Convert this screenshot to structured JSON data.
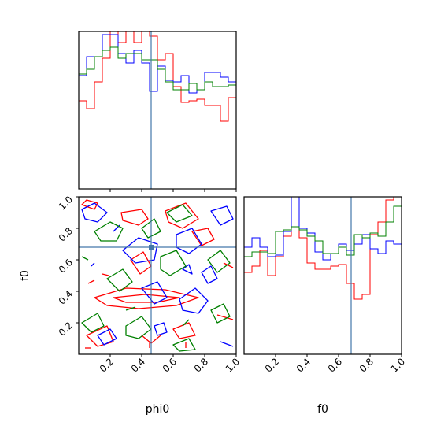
{
  "chart_data": {
    "type": "corner",
    "parameters": [
      "phi0",
      "f0"
    ],
    "truths": {
      "phi0": 0.46,
      "f0": 0.68
    },
    "range": [
      0,
      1
    ],
    "ticks": [
      0.2,
      0.4,
      0.6,
      0.8,
      1.0
    ],
    "tick_labels": [
      "0.2",
      "0.4",
      "0.6",
      "0.8",
      "1.0"
    ],
    "xlabel_left": "phi0",
    "xlabel_right": "f0",
    "ylabel": "f0",
    "colors": {
      "series_a": "#ff0000",
      "series_b": "#0000ff",
      "series_c": "#008000",
      "truth": "#4477aa"
    },
    "hist_phi0": {
      "bins": 20,
      "series": [
        {
          "color": "#ff0000",
          "values": [
            0.56,
            0.51,
            0.68,
            0.83,
            1.02,
            0.93,
            1.05,
            0.93,
            1.0,
            0.97,
            0.82,
            0.86,
            0.65,
            0.55,
            0.56,
            0.57,
            0.53,
            0.53,
            0.43,
            0.58
          ]
        },
        {
          "color": "#0000ff",
          "values": [
            0.72,
            0.84,
            0.84,
            0.98,
            0.98,
            0.86,
            0.8,
            0.88,
            0.8,
            0.62,
            0.78,
            0.69,
            0.68,
            0.72,
            0.61,
            0.63,
            0.74,
            0.74,
            0.71,
            0.68
          ]
        },
        {
          "color": "#008000",
          "values": [
            0.73,
            0.76,
            0.84,
            0.88,
            0.9,
            0.83,
            0.86,
            0.86,
            0.82,
            0.82,
            0.76,
            0.68,
            0.63,
            0.63,
            0.67,
            0.63,
            0.68,
            0.65,
            0.65,
            0.66
          ]
        }
      ]
    },
    "hist_f0": {
      "bins": 20,
      "series": [
        {
          "color": "#ff0000",
          "values": [
            0.52,
            0.56,
            0.66,
            0.5,
            0.62,
            0.75,
            1.0,
            0.74,
            0.58,
            0.54,
            0.54,
            0.56,
            0.57,
            0.45,
            0.35,
            0.38,
            0.76,
            0.84,
            0.98,
            1.01
          ]
        },
        {
          "color": "#0000ff",
          "values": [
            0.68,
            0.74,
            0.68,
            0.62,
            0.63,
            0.78,
            1.0,
            0.8,
            0.77,
            0.65,
            0.6,
            0.64,
            0.7,
            0.66,
            0.7,
            0.76,
            0.67,
            0.64,
            0.72,
            0.7
          ]
        },
        {
          "color": "#008000",
          "values": [
            0.62,
            0.65,
            0.65,
            0.64,
            0.78,
            0.79,
            0.81,
            0.79,
            0.75,
            0.72,
            0.64,
            0.64,
            0.68,
            0.63,
            0.76,
            0.74,
            0.77,
            0.75,
            0.84,
            0.94
          ]
        }
      ]
    },
    "contours_2d": [
      {
        "color": "#ff0000",
        "paths": [
          {
            "closed": true,
            "pts": [
              [
                0.02,
                0.95
              ],
              [
                0.1,
                0.92
              ],
              [
                0.12,
                0.96
              ],
              [
                0.05,
                0.98
              ]
            ]
          },
          {
            "closed": true,
            "pts": [
              [
                0.27,
                0.9
              ],
              [
                0.4,
                0.92
              ],
              [
                0.44,
                0.86
              ],
              [
                0.38,
                0.82
              ],
              [
                0.28,
                0.85
              ]
            ]
          },
          {
            "closed": true,
            "pts": [
              [
                0.1,
                0.36
              ],
              [
                0.3,
                0.42
              ],
              [
                0.55,
                0.41
              ],
              [
                0.76,
                0.36
              ],
              [
                0.62,
                0.31
              ],
              [
                0.38,
                0.29
              ],
              [
                0.18,
                0.31
              ]
            ]
          },
          {
            "closed": true,
            "pts": [
              [
                0.22,
                0.36
              ],
              [
                0.42,
                0.38
              ],
              [
                0.64,
                0.36
              ],
              [
                0.5,
                0.33
              ],
              [
                0.3,
                0.33
              ]
            ]
          },
          {
            "closed": true,
            "pts": [
              [
                0.55,
                0.91
              ],
              [
                0.68,
                0.96
              ],
              [
                0.76,
                0.86
              ],
              [
                0.66,
                0.8
              ],
              [
                0.57,
                0.84
              ]
            ]
          },
          {
            "closed": true,
            "pts": [
              [
                0.72,
                0.78
              ],
              [
                0.82,
                0.8
              ],
              [
                0.86,
                0.73
              ],
              [
                0.78,
                0.69
              ]
            ]
          },
          {
            "closed": true,
            "pts": [
              [
                0.33,
                0.6
              ],
              [
                0.41,
                0.65
              ],
              [
                0.46,
                0.56
              ],
              [
                0.39,
                0.51
              ]
            ]
          },
          {
            "closed": true,
            "pts": [
              [
                0.05,
                0.12
              ],
              [
                0.18,
                0.18
              ],
              [
                0.22,
                0.08
              ],
              [
                0.12,
                0.05
              ]
            ]
          },
          {
            "closed": true,
            "pts": [
              [
                0.6,
                0.16
              ],
              [
                0.7,
                0.2
              ],
              [
                0.74,
                0.12
              ],
              [
                0.64,
                0.1
              ]
            ]
          },
          {
            "closed": false,
            "pts": [
              [
                0.88,
                0.25
              ],
              [
                0.98,
                0.22
              ]
            ]
          },
          {
            "closed": false,
            "pts": [
              [
                0.4,
                0.12
              ],
              [
                0.46,
                0.07
              ],
              [
                0.52,
                0.12
              ]
            ]
          },
          {
            "closed": false,
            "pts": [
              [
                0.06,
                0.45
              ],
              [
                0.1,
                0.47
              ]
            ]
          },
          {
            "closed": false,
            "pts": [
              [
                0.15,
                0.51
              ],
              [
                0.19,
                0.5
              ]
            ]
          },
          {
            "closed": false,
            "pts": [
              [
                0.45,
                0.04
              ],
              [
                0.45,
                0.08
              ]
            ]
          },
          {
            "closed": false,
            "pts": [
              [
                0.68,
                0.04
              ],
              [
                0.68,
                0.08
              ]
            ]
          },
          {
            "closed": false,
            "pts": [
              [
                0.04,
                0.04
              ],
              [
                0.08,
                0.04
              ]
            ]
          },
          {
            "closed": false,
            "pts": [
              [
                0.92,
                0.58
              ],
              [
                0.98,
                0.55
              ]
            ]
          }
        ]
      },
      {
        "color": "#0000ff",
        "paths": [
          {
            "closed": true,
            "pts": [
              [
                0.02,
                0.92
              ],
              [
                0.1,
                0.96
              ],
              [
                0.18,
                0.9
              ],
              [
                0.12,
                0.84
              ],
              [
                0.04,
                0.86
              ]
            ]
          },
          {
            "closed": true,
            "pts": [
              [
                0.28,
                0.66
              ],
              [
                0.38,
                0.74
              ],
              [
                0.5,
                0.7
              ],
              [
                0.48,
                0.6
              ],
              [
                0.36,
                0.58
              ]
            ]
          },
          {
            "closed": true,
            "pts": [
              [
                0.62,
                0.76
              ],
              [
                0.72,
                0.8
              ],
              [
                0.78,
                0.7
              ],
              [
                0.7,
                0.64
              ],
              [
                0.62,
                0.68
              ]
            ]
          },
          {
            "closed": true,
            "pts": [
              [
                0.4,
                0.42
              ],
              [
                0.5,
                0.46
              ],
              [
                0.56,
                0.36
              ],
              [
                0.48,
                0.32
              ]
            ]
          },
          {
            "closed": true,
            "pts": [
              [
                0.64,
                0.35
              ],
              [
                0.74,
                0.42
              ],
              [
                0.82,
                0.34
              ],
              [
                0.76,
                0.26
              ],
              [
                0.66,
                0.28
              ]
            ]
          },
          {
            "closed": true,
            "pts": [
              [
                0.48,
                0.18
              ],
              [
                0.54,
                0.2
              ],
              [
                0.56,
                0.14
              ],
              [
                0.5,
                0.12
              ]
            ]
          },
          {
            "closed": true,
            "pts": [
              [
                0.12,
                0.12
              ],
              [
                0.2,
                0.16
              ],
              [
                0.24,
                0.1
              ],
              [
                0.16,
                0.06
              ]
            ]
          },
          {
            "closed": true,
            "pts": [
              [
                0.84,
                0.91
              ],
              [
                0.94,
                0.94
              ],
              [
                0.98,
                0.86
              ],
              [
                0.9,
                0.82
              ]
            ]
          },
          {
            "closed": true,
            "pts": [
              [
                0.78,
                0.52
              ],
              [
                0.84,
                0.56
              ],
              [
                0.88,
                0.48
              ],
              [
                0.82,
                0.45
              ]
            ]
          },
          {
            "closed": true,
            "pts": [
              [
                0.66,
                0.54
              ],
              [
                0.7,
                0.57
              ],
              [
                0.72,
                0.51
              ]
            ]
          },
          {
            "closed": false,
            "pts": [
              [
                0.08,
                0.56
              ],
              [
                0.1,
                0.58
              ]
            ]
          },
          {
            "closed": false,
            "pts": [
              [
                0.22,
                0.78
              ],
              [
                0.26,
                0.82
              ]
            ]
          },
          {
            "closed": false,
            "pts": [
              [
                0.9,
                0.08
              ],
              [
                0.98,
                0.05
              ]
            ]
          }
        ]
      },
      {
        "color": "#008000",
        "paths": [
          {
            "closed": true,
            "pts": [
              [
                0.1,
                0.78
              ],
              [
                0.2,
                0.84
              ],
              [
                0.28,
                0.8
              ],
              [
                0.24,
                0.72
              ],
              [
                0.14,
                0.72
              ]
            ]
          },
          {
            "closed": true,
            "pts": [
              [
                0.52,
                0.62
              ],
              [
                0.62,
                0.66
              ],
              [
                0.68,
                0.56
              ],
              [
                0.58,
                0.5
              ],
              [
                0.52,
                0.54
              ]
            ]
          },
          {
            "closed": true,
            "pts": [
              [
                0.18,
                0.48
              ],
              [
                0.28,
                0.54
              ],
              [
                0.34,
                0.46
              ],
              [
                0.26,
                0.4
              ]
            ]
          },
          {
            "closed": true,
            "pts": [
              [
                0.3,
                0.18
              ],
              [
                0.4,
                0.24
              ],
              [
                0.46,
                0.16
              ],
              [
                0.38,
                0.1
              ],
              [
                0.3,
                0.12
              ]
            ]
          },
          {
            "closed": true,
            "pts": [
              [
                0.02,
                0.2
              ],
              [
                0.12,
                0.26
              ],
              [
                0.16,
                0.18
              ],
              [
                0.08,
                0.14
              ]
            ]
          },
          {
            "closed": true,
            "pts": [
              [
                0.56,
                0.9
              ],
              [
                0.66,
                0.95
              ],
              [
                0.72,
                0.88
              ],
              [
                0.62,
                0.84
              ]
            ]
          },
          {
            "closed": true,
            "pts": [
              [
                0.82,
                0.6
              ],
              [
                0.9,
                0.66
              ],
              [
                0.96,
                0.58
              ],
              [
                0.88,
                0.52
              ]
            ]
          },
          {
            "closed": true,
            "pts": [
              [
                0.6,
                0.06
              ],
              [
                0.7,
                0.1
              ],
              [
                0.74,
                0.03
              ],
              [
                0.64,
                0.02
              ]
            ]
          },
          {
            "closed": true,
            "pts": [
              [
                0.4,
                0.8
              ],
              [
                0.48,
                0.86
              ],
              [
                0.52,
                0.78
              ],
              [
                0.44,
                0.74
              ]
            ]
          },
          {
            "closed": true,
            "pts": [
              [
                0.84,
                0.28
              ],
              [
                0.92,
                0.32
              ],
              [
                0.96,
                0.24
              ],
              [
                0.88,
                0.2
              ]
            ]
          },
          {
            "closed": false,
            "pts": [
              [
                0.3,
                0.28
              ],
              [
                0.36,
                0.3
              ]
            ]
          },
          {
            "closed": false,
            "pts": [
              [
                0.66,
                0.18
              ],
              [
                0.7,
                0.22
              ]
            ]
          },
          {
            "closed": false,
            "pts": [
              [
                0.02,
                0.62
              ],
              [
                0.06,
                0.6
              ]
            ]
          }
        ]
      }
    ]
  }
}
